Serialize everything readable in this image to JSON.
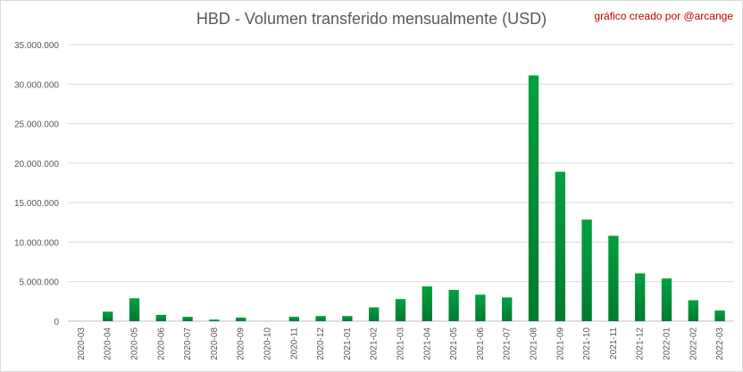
{
  "chart_data": {
    "type": "bar",
    "title": "HBD - Volumen transferido mensualmente (USD)",
    "credit": "gráfico creado por @arcange",
    "xlabel": "",
    "ylabel": "",
    "ylim": [
      0,
      35000000
    ],
    "yticks": [
      0,
      5000000,
      10000000,
      15000000,
      20000000,
      25000000,
      30000000,
      35000000
    ],
    "ytick_labels": [
      "0",
      "5.000.000",
      "10.000.000",
      "15.000.000",
      "20.000.000",
      "25.000.000",
      "30.000.000",
      "35.000.000"
    ],
    "grid": true,
    "legend": "none",
    "bar_color": "#00a040",
    "bar_color_dark": "#007a30",
    "categories": [
      "2020-03",
      "2020-04",
      "2020-05",
      "2020-06",
      "2020-07",
      "2020-08",
      "2020-09",
      "2020-10",
      "2020-11",
      "2020-12",
      "2021-01",
      "2021-02",
      "2021-03",
      "2021-04",
      "2021-05",
      "2021-06",
      "2021-07",
      "2021-08",
      "2021-09",
      "2021-10",
      "2021-11",
      "2021-12",
      "2022-01",
      "2022-02",
      "2022-03"
    ],
    "values": [
      0,
      1200000,
      2900000,
      800000,
      550000,
      200000,
      450000,
      0,
      550000,
      650000,
      650000,
      1750000,
      2800000,
      4400000,
      3950000,
      3350000,
      3000000,
      31100000,
      18900000,
      12850000,
      10800000,
      6050000,
      5400000,
      2650000,
      1350000
    ]
  }
}
